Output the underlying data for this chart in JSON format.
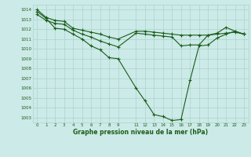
{
  "title": "Graphe pression niveau de la mer (hPa)",
  "bg_color": "#cceae7",
  "grid_color": "#aad4d0",
  "line_color": "#1a5c1a",
  "ylim": [
    1002.5,
    1014.5
  ],
  "yticks": [
    1003,
    1004,
    1005,
    1006,
    1007,
    1008,
    1009,
    1010,
    1011,
    1012,
    1013,
    1014
  ],
  "xlim": [
    -0.5,
    23.5
  ],
  "xtick_positions": [
    0,
    1,
    2,
    3,
    4,
    5,
    6,
    7,
    8,
    9,
    11,
    12,
    13,
    14,
    15,
    16,
    17,
    18,
    19,
    20,
    21,
    22,
    23
  ],
  "xtick_labels": [
    "0",
    "1",
    "2",
    "3",
    "4",
    "5",
    "6",
    "7",
    "8",
    "9",
    "11",
    "12",
    "13",
    "14",
    "15",
    "16",
    "17",
    "18",
    "19",
    "20",
    "21",
    "22",
    "23"
  ],
  "series1_x": [
    0,
    1,
    2,
    3,
    4,
    5,
    6,
    7,
    8,
    9,
    11,
    12,
    13,
    14,
    15,
    16,
    17,
    18,
    19,
    20,
    21,
    22,
    23
  ],
  "series1_y": [
    1014.0,
    1013.2,
    1012.9,
    1012.8,
    1012.1,
    1011.9,
    1011.7,
    1011.5,
    1011.2,
    1011.0,
    1011.8,
    1011.8,
    1011.7,
    1011.6,
    1011.5,
    1011.4,
    1011.4,
    1011.4,
    1011.4,
    1011.5,
    1011.6,
    1011.7,
    1011.5
  ],
  "series2_x": [
    0,
    1,
    2,
    3,
    4,
    5,
    6,
    7,
    8,
    9,
    11,
    12,
    13,
    14,
    15,
    16,
    17,
    18,
    19,
    20,
    21,
    22,
    23
  ],
  "series2_y": [
    1013.5,
    1012.9,
    1012.6,
    1012.5,
    1011.9,
    1011.5,
    1011.2,
    1010.8,
    1010.5,
    1010.2,
    1011.6,
    1011.5,
    1011.4,
    1011.3,
    1011.2,
    1010.3,
    1010.4,
    1010.4,
    1011.4,
    1011.6,
    1012.2,
    1011.8,
    1011.5
  ],
  "series3_x": [
    0,
    1,
    2,
    3,
    4,
    5,
    6,
    7,
    8,
    9,
    11,
    12,
    13,
    14,
    15,
    16,
    17,
    18,
    19,
    20,
    21,
    22,
    23
  ],
  "series3_y": [
    1013.8,
    1013.1,
    1012.1,
    1012.0,
    1011.5,
    1011.0,
    1010.3,
    1009.9,
    1009.1,
    1009.0,
    1006.0,
    1004.7,
    1003.3,
    1003.1,
    1002.7,
    1002.8,
    1006.8,
    1010.3,
    1010.4,
    1011.1,
    1011.5,
    1011.8,
    1011.5
  ]
}
